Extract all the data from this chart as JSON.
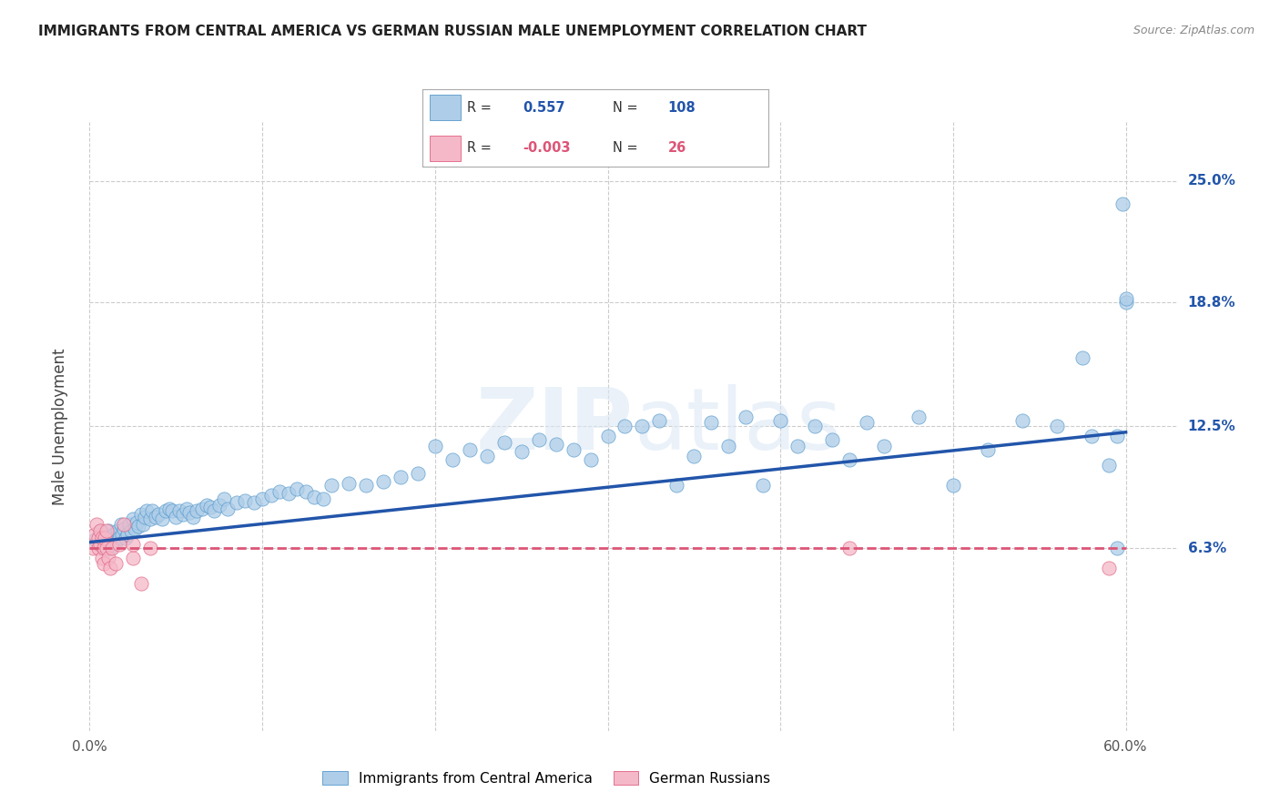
{
  "title": "IMMIGRANTS FROM CENTRAL AMERICA VS GERMAN RUSSIAN MALE UNEMPLOYMENT CORRELATION CHART",
  "source": "Source: ZipAtlas.com",
  "ylabel": "Male Unemployment",
  "xlim": [
    0.0,
    0.63
  ],
  "ylim": [
    -0.03,
    0.28
  ],
  "yticks": [
    0.063,
    0.125,
    0.188,
    0.25
  ],
  "ytick_labels": [
    "6.3%",
    "12.5%",
    "18.8%",
    "25.0%"
  ],
  "xticks": [
    0.0,
    0.1,
    0.2,
    0.3,
    0.4,
    0.5,
    0.6
  ],
  "legend_blue_r": "0.557",
  "legend_blue_n": "108",
  "legend_pink_r": "-0.003",
  "legend_pink_n": "26",
  "blue_color": "#aecde8",
  "blue_edge_color": "#5599cc",
  "pink_color": "#f5b8c8",
  "pink_edge_color": "#e06080",
  "trendline_blue_color": "#2255aa",
  "trendline_pink_color": "#dd5577",
  "watermark": "ZIPatlas",
  "background_color": "#ffffff",
  "blue_scatter_x": [
    0.003,
    0.005,
    0.006,
    0.007,
    0.008,
    0.009,
    0.01,
    0.011,
    0.012,
    0.013,
    0.014,
    0.015,
    0.016,
    0.017,
    0.018,
    0.019,
    0.02,
    0.021,
    0.022,
    0.023,
    0.024,
    0.025,
    0.026,
    0.027,
    0.028,
    0.03,
    0.031,
    0.032,
    0.033,
    0.035,
    0.036,
    0.038,
    0.04,
    0.042,
    0.044,
    0.046,
    0.048,
    0.05,
    0.052,
    0.054,
    0.056,
    0.058,
    0.06,
    0.062,
    0.065,
    0.068,
    0.07,
    0.072,
    0.075,
    0.078,
    0.08,
    0.085,
    0.09,
    0.095,
    0.1,
    0.105,
    0.11,
    0.115,
    0.12,
    0.125,
    0.13,
    0.135,
    0.14,
    0.15,
    0.16,
    0.17,
    0.18,
    0.19,
    0.2,
    0.21,
    0.22,
    0.23,
    0.24,
    0.25,
    0.26,
    0.27,
    0.28,
    0.29,
    0.3,
    0.31,
    0.32,
    0.33,
    0.34,
    0.35,
    0.36,
    0.37,
    0.38,
    0.39,
    0.4,
    0.41,
    0.42,
    0.43,
    0.44,
    0.45,
    0.46,
    0.48,
    0.5,
    0.52,
    0.54,
    0.56,
    0.575,
    0.58,
    0.59,
    0.595,
    0.6,
    0.595,
    0.6,
    0.598
  ],
  "blue_scatter_y": [
    0.067,
    0.065,
    0.072,
    0.068,
    0.063,
    0.07,
    0.067,
    0.072,
    0.063,
    0.068,
    0.07,
    0.066,
    0.072,
    0.068,
    0.075,
    0.07,
    0.073,
    0.068,
    0.07,
    0.075,
    0.072,
    0.078,
    0.073,
    0.076,
    0.074,
    0.08,
    0.075,
    0.079,
    0.082,
    0.078,
    0.082,
    0.079,
    0.08,
    0.078,
    0.082,
    0.083,
    0.082,
    0.079,
    0.082,
    0.08,
    0.083,
    0.081,
    0.079,
    0.082,
    0.083,
    0.085,
    0.084,
    0.082,
    0.085,
    0.088,
    0.083,
    0.086,
    0.087,
    0.086,
    0.088,
    0.09,
    0.092,
    0.091,
    0.093,
    0.092,
    0.089,
    0.088,
    0.095,
    0.096,
    0.095,
    0.097,
    0.099,
    0.101,
    0.115,
    0.108,
    0.113,
    0.11,
    0.117,
    0.112,
    0.118,
    0.116,
    0.113,
    0.108,
    0.12,
    0.125,
    0.125,
    0.128,
    0.095,
    0.11,
    0.127,
    0.115,
    0.13,
    0.095,
    0.128,
    0.115,
    0.125,
    0.118,
    0.108,
    0.127,
    0.115,
    0.13,
    0.095,
    0.113,
    0.128,
    0.125,
    0.16,
    0.12,
    0.105,
    0.063,
    0.188,
    0.12,
    0.19,
    0.238
  ],
  "pink_scatter_x": [
    0.002,
    0.003,
    0.004,
    0.005,
    0.005,
    0.006,
    0.006,
    0.007,
    0.007,
    0.008,
    0.008,
    0.009,
    0.01,
    0.01,
    0.011,
    0.012,
    0.013,
    0.015,
    0.017,
    0.02,
    0.025,
    0.025,
    0.03,
    0.035,
    0.44,
    0.59
  ],
  "pink_scatter_y": [
    0.063,
    0.07,
    0.075,
    0.068,
    0.063,
    0.072,
    0.065,
    0.068,
    0.058,
    0.063,
    0.055,
    0.068,
    0.063,
    0.072,
    0.058,
    0.053,
    0.063,
    0.055,
    0.065,
    0.075,
    0.058,
    0.065,
    0.045,
    0.063,
    0.063,
    0.053
  ],
  "blue_trend_x": [
    0.0,
    0.6
  ],
  "blue_trend_y": [
    0.066,
    0.122
  ],
  "pink_trend_x": [
    0.0,
    0.6
  ],
  "pink_trend_y": [
    0.063,
    0.063
  ]
}
